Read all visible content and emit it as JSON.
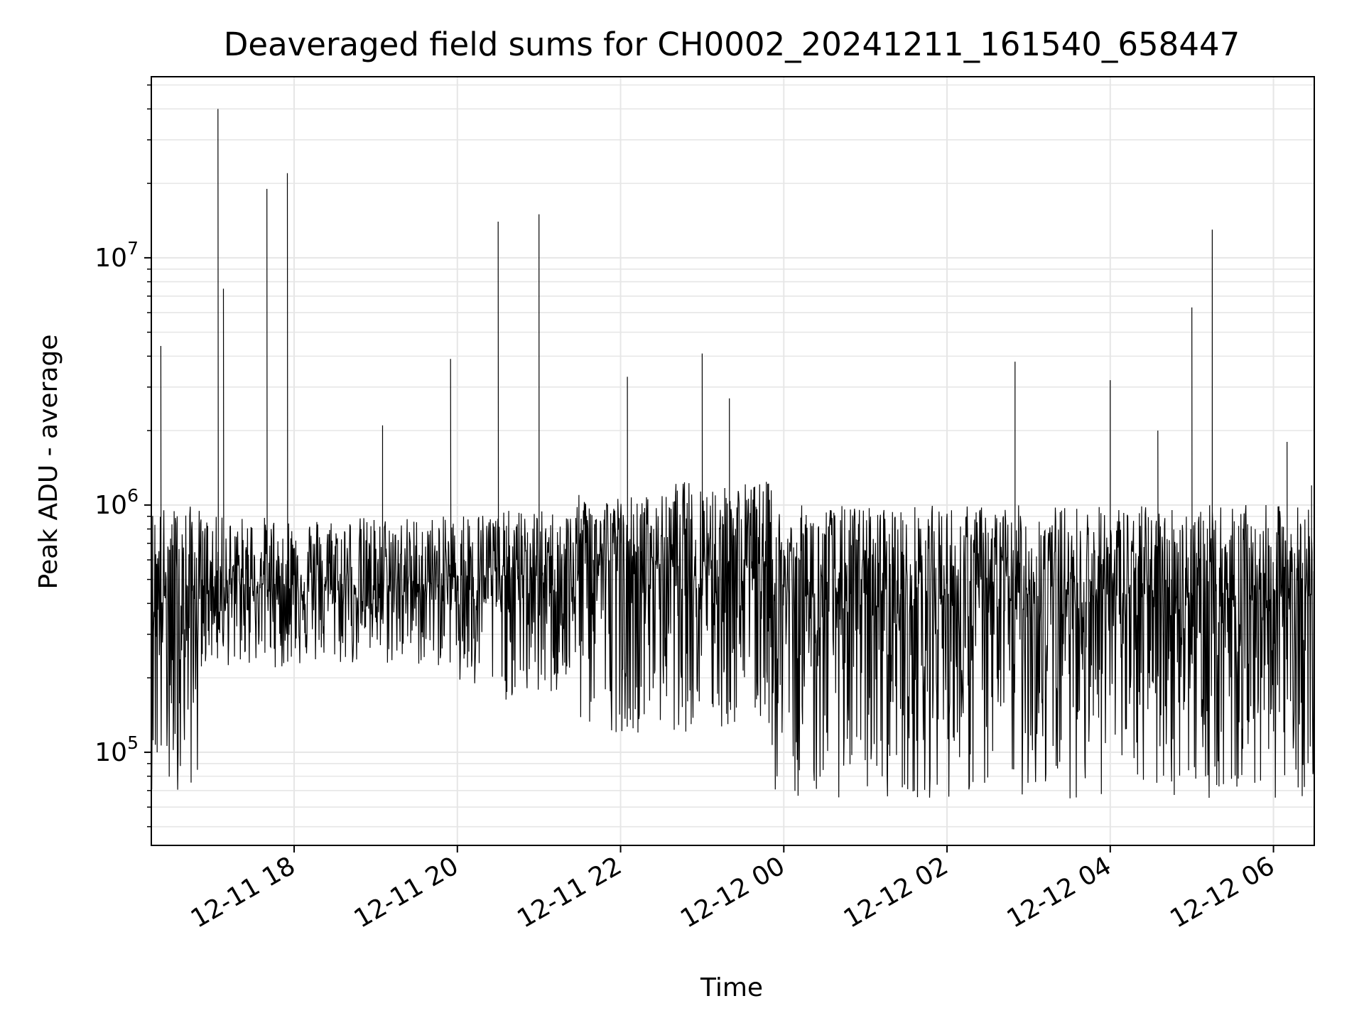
{
  "chart_data": {
    "type": "line",
    "title": "Deaveraged field sums for CH0002_20241211_161540_658447",
    "xlabel": "Time",
    "ylabel": "Peak ADU - average",
    "yscale": "log",
    "grid": true,
    "line_color": "#000000",
    "xlim": [
      "2024-12-11 16:15",
      "2024-12-12 06:30"
    ],
    "ylim": [
      42000,
      54000000
    ],
    "x_ticks": [
      {
        "value": "2024-12-11 18:00",
        "label": "12-11 18"
      },
      {
        "value": "2024-12-11 20:00",
        "label": "12-11 20"
      },
      {
        "value": "2024-12-11 22:00",
        "label": "12-11 22"
      },
      {
        "value": "2024-12-12 00:00",
        "label": "12-12 00"
      },
      {
        "value": "2024-12-12 02:00",
        "label": "12-12 02"
      },
      {
        "value": "2024-12-12 04:00",
        "label": "12-12 04"
      },
      {
        "value": "2024-12-12 06:00",
        "label": "12-12 06"
      }
    ],
    "y_ticks": [
      {
        "value": 100000,
        "base": "10",
        "exp": "5"
      },
      {
        "value": 1000000,
        "base": "10",
        "exp": "6"
      },
      {
        "value": 10000000,
        "base": "10",
        "exp": "7"
      }
    ],
    "series": [
      {
        "x": [
          "2024-12-11 16:16",
          "2024-12-11 16:22",
          "2024-12-11 16:26",
          "2024-12-11 16:30",
          "2024-12-11 16:34",
          "2024-12-11 16:38",
          "2024-12-11 16:45",
          "2024-12-11 16:52",
          "2024-12-11 17:00",
          "2024-12-11 17:04",
          "2024-12-11 17:08",
          "2024-12-11 17:12",
          "2024-12-11 17:16",
          "2024-12-11 17:25",
          "2024-12-11 17:40",
          "2024-12-11 17:45",
          "2024-12-11 17:55",
          "2024-12-11 18:00",
          "2024-12-11 19:00",
          "2024-12-11 19:05",
          "2024-12-11 19:55",
          "2024-12-11 20:00",
          "2024-12-11 20:05",
          "2024-12-11 20:30",
          "2024-12-11 20:45",
          "2024-12-11 21:00",
          "2024-12-11 21:10",
          "2024-12-11 21:40",
          "2024-12-11 21:45",
          "2024-12-11 22:00",
          "2024-12-11 22:05",
          "2024-12-11 22:15",
          "2024-12-11 22:40",
          "2024-12-11 23:00",
          "2024-12-11 23:15",
          "2024-12-11 23:20",
          "2024-12-11 23:40",
          "2024-12-12 00:00",
          "2024-12-12 00:45",
          "2024-12-12 01:00",
          "2024-12-12 01:45",
          "2024-12-12 02:00",
          "2024-12-12 02:25",
          "2024-12-12 02:50",
          "2024-12-12 03:00",
          "2024-12-12 03:45",
          "2024-12-12 04:00",
          "2024-12-12 04:05",
          "2024-12-12 04:35",
          "2024-12-12 04:45",
          "2024-12-12 05:00",
          "2024-12-12 05:15",
          "2024-12-12 05:30",
          "2024-12-12 05:45",
          "2024-12-12 06:00",
          "2024-12-12 06:10",
          "2024-12-12 06:20",
          "2024-12-12 06:28"
        ],
        "y": [
          900000,
          4400000,
          350000,
          250000,
          900000,
          300000,
          450000,
          500000,
          550000,
          40000000,
          7500000,
          420000,
          480000,
          550000,
          19000000,
          480000,
          22000000,
          520000,
          600000,
          2100000,
          3900000,
          450000,
          600000,
          14000000,
          550000,
          15000000,
          650000,
          600000,
          650000,
          700000,
          3300000,
          650000,
          700000,
          4100000,
          900000,
          2700000,
          800000,
          600000,
          550000,
          500000,
          450000,
          480000,
          500000,
          3800000,
          450000,
          500000,
          3200000,
          450000,
          2000000,
          500000,
          6300000,
          13000000,
          420000,
          400000,
          350000,
          1800000,
          700000,
          1200000
        ]
      }
    ]
  }
}
